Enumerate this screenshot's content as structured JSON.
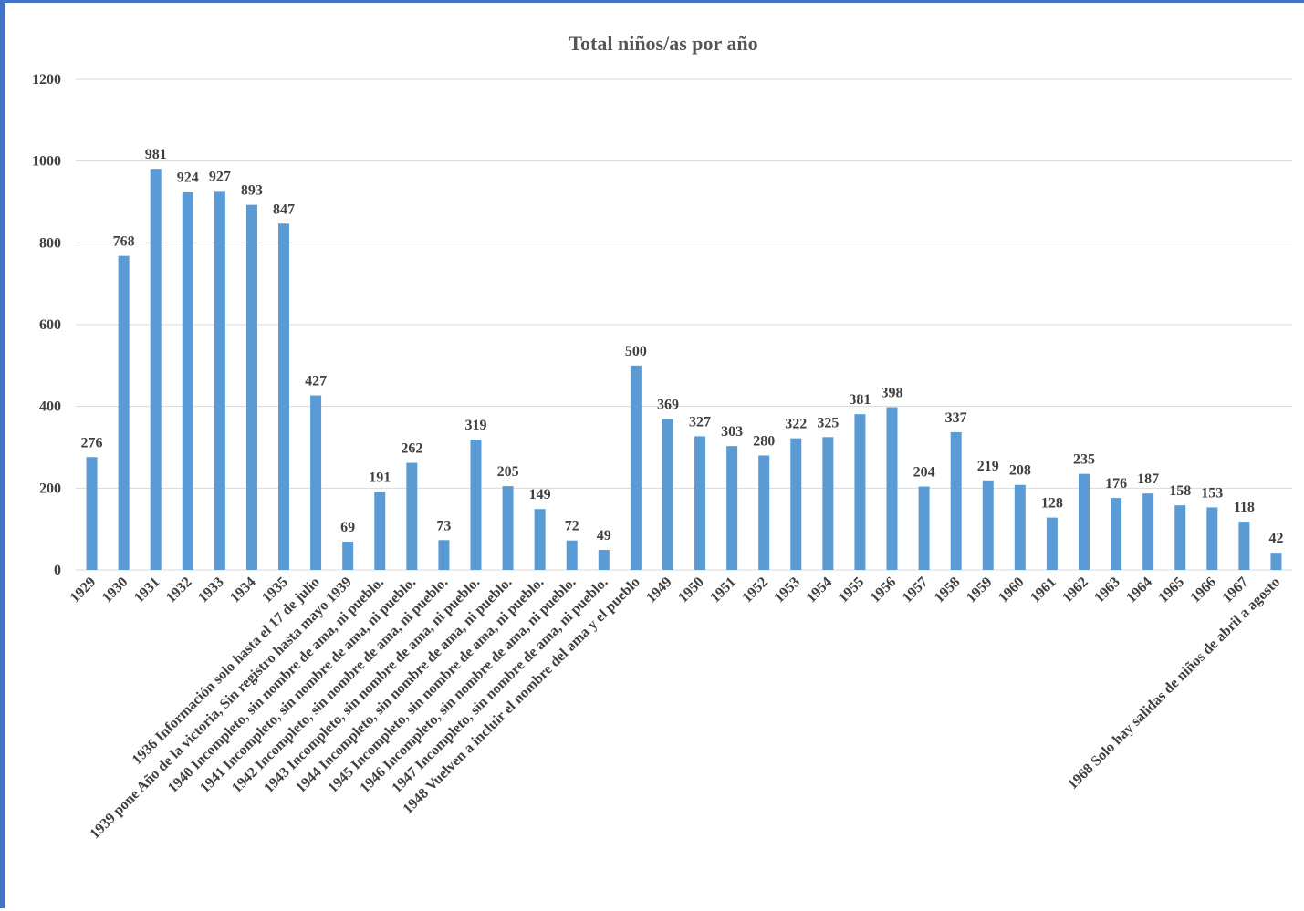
{
  "chart_data": {
    "type": "bar",
    "title": "Total niños/as por año",
    "xlabel": "",
    "ylabel": "",
    "ylim": [
      0,
      1200
    ],
    "yticks": [
      0,
      200,
      400,
      600,
      800,
      1000,
      1200
    ],
    "grid": true,
    "legend": "none",
    "bar_color": "#5B9BD5",
    "categories": [
      "1929",
      "1930",
      "1931",
      "1932",
      "1933",
      "1934",
      "1935",
      "1936 Información solo  hasta el 17 de julio",
      "1939 pone Año de la victoria, Sin registro hasta mayo 1939",
      "1940 Incompleto, sin nombre de ama, ni pueblo.",
      "1941 Incompleto, sin nombre de ama, ni pueblo.",
      "1942 Incompleto, sin nombre de ama, ni pueblo.",
      "1943 Incompleto, sin nombre de ama, ni pueblo.",
      "1944 Incompleto, sin nombre de ama, ni pueblo.",
      "1945 Incompleto, sin nombre de ama, ni pueblo.",
      "1946 Incompleto, sin nombre de ama, ni pueblo.",
      "1947 Incompleto, sin nombre de ama, ni pueblo.",
      "1948 Vuelven a incluir el nombre del ama y el pueblo",
      "1949",
      "1950",
      "1951",
      "1952",
      "1953",
      "1954",
      "1955",
      "1956",
      "1957",
      "1958",
      "1959",
      "1960",
      "1961",
      "1962",
      "1963",
      "1964",
      "1965",
      "1966",
      "1967",
      "1968 Solo hay salidas de niños de abril a agosto"
    ],
    "values": [
      276,
      768,
      981,
      924,
      927,
      893,
      847,
      427,
      69,
      191,
      262,
      73,
      319,
      205,
      149,
      72,
      49,
      500,
      369,
      327,
      303,
      280,
      322,
      325,
      381,
      398,
      204,
      337,
      219,
      208,
      128,
      235,
      176,
      187,
      158,
      153,
      118,
      42
    ]
  }
}
